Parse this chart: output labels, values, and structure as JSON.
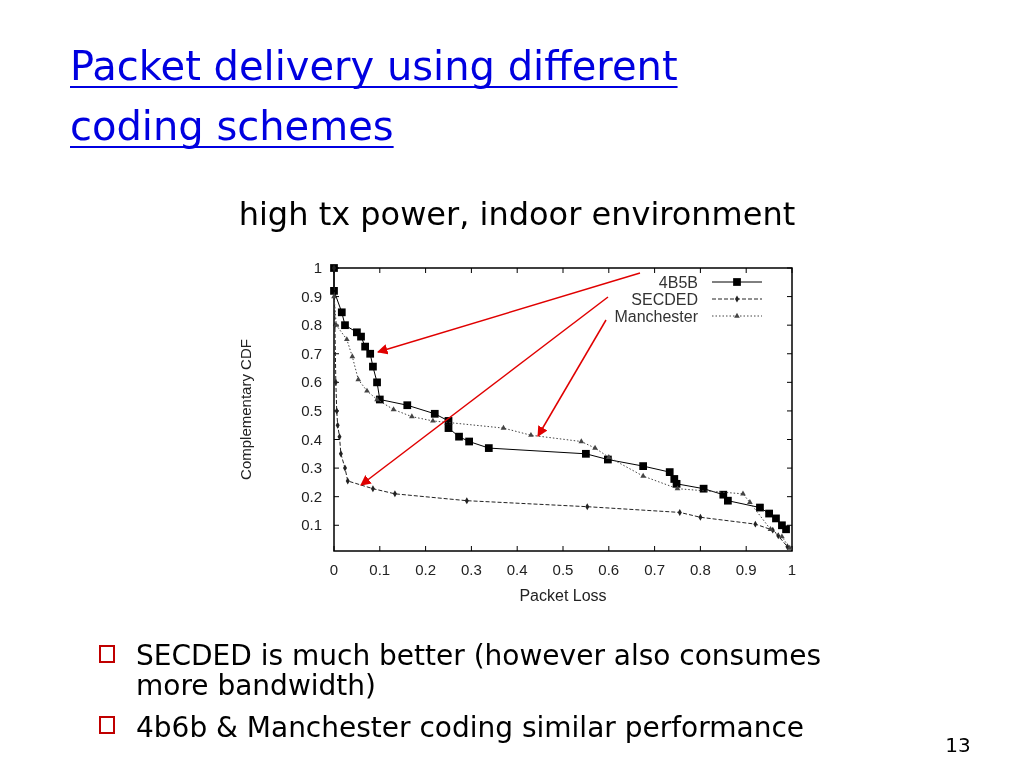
{
  "chart_data": {
    "type": "line",
    "title": "Packet delivery using different coding schemes",
    "subtitle": "high tx power, indoor environment",
    "xlabel": "Packet Loss",
    "ylabel": "Complementary CDF",
    "annotations": [
      "SECDED is much better (however also consumes more bandwidth)",
      "4b6b & Manchester coding similar performance",
      "13"
    ],
    "xlim": [
      0,
      1
    ],
    "ylim": [
      0.01,
      1
    ],
    "xticks": [
      0,
      0.1,
      0.2,
      0.3,
      0.4,
      0.5,
      0.6,
      0.7,
      0.8,
      0.9,
      1
    ],
    "yticks": [
      0.1,
      0.2,
      0.3,
      0.4,
      0.5,
      0.6,
      0.7,
      0.8,
      0.9,
      1
    ],
    "grid": false,
    "legend": "top right",
    "series": [
      {
        "name": "4B5B",
        "color": "#000000",
        "marker": "square",
        "line_style": "solid",
        "x": [
          0,
          0,
          0.017,
          0.024,
          0.05,
          0.059,
          0.068,
          0.079,
          0.085,
          0.094,
          0.1,
          0.16,
          0.22,
          0.25,
          0.25,
          0.273,
          0.295,
          0.338,
          0.55,
          0.598,
          0.675,
          0.733,
          0.743,
          0.748,
          0.807,
          0.85,
          0.86,
          0.93,
          0.95,
          0.965,
          0.978,
          0.987
        ],
        "values": [
          1,
          0.92,
          0.845,
          0.8,
          0.775,
          0.76,
          0.725,
          0.7,
          0.655,
          0.6,
          0.54,
          0.52,
          0.49,
          0.465,
          0.44,
          0.41,
          0.393,
          0.37,
          0.35,
          0.33,
          0.307,
          0.286,
          0.262,
          0.245,
          0.228,
          0.207,
          0.186,
          0.162,
          0.141,
          0.124,
          0.1,
          0.086
        ]
      },
      {
        "name": "SECDED",
        "color": "#222222",
        "marker": "diamond",
        "line_style": "dashed",
        "x": [
          0,
          0.002,
          0.004,
          0.006,
          0.008,
          0.012,
          0.015,
          0.024,
          0.03,
          0.085,
          0.133,
          0.29,
          0.553,
          0.755,
          0.8,
          0.92,
          0.958,
          0.97,
          0.99
        ],
        "values": [
          1,
          0.8,
          0.6,
          0.5,
          0.45,
          0.41,
          0.35,
          0.3,
          0.255,
          0.228,
          0.21,
          0.186,
          0.165,
          0.145,
          0.128,
          0.104,
          0.083,
          0.063,
          0.025
        ]
      },
      {
        "name": "Manchester",
        "color": "#444444",
        "marker": "triangle",
        "line_style": "dotted",
        "x": [
          0,
          0.005,
          0.028,
          0.04,
          0.053,
          0.072,
          0.094,
          0.13,
          0.17,
          0.216,
          0.37,
          0.43,
          0.54,
          0.57,
          0.6,
          0.675,
          0.75,
          0.893,
          0.908,
          0.953,
          0.978,
          0.995
        ],
        "values": [
          0.9,
          0.8,
          0.75,
          0.69,
          0.61,
          0.57,
          0.54,
          0.505,
          0.48,
          0.465,
          0.44,
          0.415,
          0.393,
          0.37,
          0.338,
          0.272,
          0.228,
          0.21,
          0.18,
          0.086,
          0.06,
          0.02
        ]
      }
    ]
  }
}
